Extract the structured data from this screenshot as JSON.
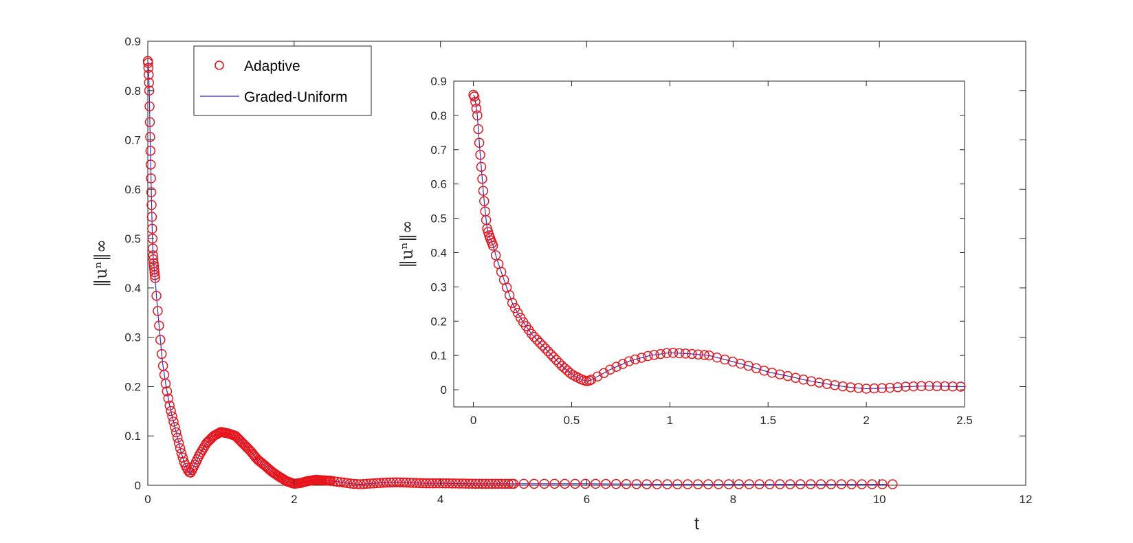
{
  "colors": {
    "adaptive_marker": "#e8141c",
    "graded_line": "#2b2bd6",
    "axes": "#262626"
  },
  "chart_data": [
    {
      "id": "main",
      "type": "scatter",
      "xlabel": "t",
      "ylabel": "‖uⁿ‖∞",
      "xlim": [
        0,
        12
      ],
      "ylim": [
        0,
        0.9
      ],
      "xticks": [
        0,
        2,
        4,
        6,
        8,
        10,
        12
      ],
      "yticks": [
        0,
        0.1,
        0.2,
        0.3,
        0.4,
        0.5,
        0.6,
        0.7,
        0.8,
        0.9
      ],
      "grid": false,
      "legend": {
        "position": "top-left",
        "entries": [
          {
            "label": "Adaptive",
            "style": "circle-marker"
          },
          {
            "label": "Graded-Uniform",
            "style": "line"
          }
        ]
      },
      "series": [
        {
          "name": "Adaptive",
          "kind": "markers",
          "description": "circle markers, dense at small t, sparser for t>5"
        },
        {
          "name": "Graded-Uniform",
          "kind": "line"
        }
      ],
      "curve": {
        "x": [
          0,
          0.005,
          0.01,
          0.02,
          0.03,
          0.04,
          0.05,
          0.06,
          0.07,
          0.08,
          0.1,
          0.12,
          0.15,
          0.2,
          0.25,
          0.3,
          0.35,
          0.4,
          0.45,
          0.5,
          0.55,
          0.58,
          0.62,
          0.7,
          0.8,
          0.9,
          1.0,
          1.1,
          1.2,
          1.3,
          1.4,
          1.5,
          1.6,
          1.7,
          1.8,
          1.9,
          2.0,
          2.1,
          2.2,
          2.3,
          2.4,
          2.5,
          2.6,
          2.7,
          2.8,
          2.9,
          3.0,
          3.2,
          3.4,
          3.6,
          3.8,
          4.0,
          4.5,
          5.0,
          6.0,
          7.0,
          8.0,
          9.0,
          10.0,
          10.1
        ],
        "y": [
          0.86,
          0.855,
          0.84,
          0.8,
          0.72,
          0.65,
          0.58,
          0.52,
          0.47,
          0.45,
          0.42,
          0.38,
          0.33,
          0.25,
          0.2,
          0.16,
          0.13,
          0.1,
          0.07,
          0.045,
          0.03,
          0.024,
          0.035,
          0.06,
          0.085,
          0.1,
          0.108,
          0.105,
          0.1,
          0.085,
          0.07,
          0.052,
          0.04,
          0.027,
          0.017,
          0.008,
          0.003,
          0.005,
          0.009,
          0.011,
          0.01,
          0.009,
          0.007,
          0.005,
          0.003,
          0.002,
          0.003,
          0.005,
          0.006,
          0.005,
          0.004,
          0.004,
          0.003,
          0.003,
          0.003,
          0.002,
          0.002,
          0.002,
          0.002,
          0.002
        ]
      },
      "marker_density": [
        {
          "from": 0,
          "to": 0.1,
          "step": 0.004
        },
        {
          "from": 0.1,
          "to": 2.5,
          "step": 0.018
        },
        {
          "from": 2.5,
          "to": 5,
          "step": 0.045
        },
        {
          "from": 5,
          "to": 10.2,
          "step": 0.14
        }
      ]
    },
    {
      "id": "inset",
      "type": "scatter",
      "xlabel": "",
      "ylabel": "‖uⁿ‖∞",
      "xlim": [
        -0.1,
        2.5
      ],
      "ylim": [
        -0.05,
        0.9
      ],
      "xticks": [
        0,
        0.5,
        1,
        1.5,
        2,
        2.5
      ],
      "yticks": [
        0,
        0.1,
        0.2,
        0.3,
        0.4,
        0.5,
        0.6,
        0.7,
        0.8,
        0.9
      ],
      "grid": false,
      "curve": {
        "x": [
          0,
          0.005,
          0.01,
          0.02,
          0.03,
          0.04,
          0.05,
          0.06,
          0.07,
          0.08,
          0.1,
          0.12,
          0.15,
          0.2,
          0.25,
          0.3,
          0.35,
          0.4,
          0.45,
          0.5,
          0.55,
          0.58,
          0.62,
          0.7,
          0.8,
          0.9,
          1.0,
          1.1,
          1.2,
          1.3,
          1.4,
          1.5,
          1.6,
          1.7,
          1.8,
          1.9,
          2.0,
          2.1,
          2.2,
          2.3,
          2.4,
          2.5
        ],
        "y": [
          0.86,
          0.855,
          0.84,
          0.8,
          0.72,
          0.65,
          0.58,
          0.52,
          0.47,
          0.45,
          0.42,
          0.38,
          0.33,
          0.25,
          0.2,
          0.16,
          0.13,
          0.1,
          0.07,
          0.045,
          0.03,
          0.024,
          0.035,
          0.06,
          0.085,
          0.1,
          0.108,
          0.105,
          0.1,
          0.085,
          0.07,
          0.052,
          0.04,
          0.027,
          0.017,
          0.008,
          0.003,
          0.005,
          0.009,
          0.011,
          0.01,
          0.009
        ]
      },
      "marker_density": [
        {
          "from": 0,
          "to": 0.1,
          "step": 0.005
        },
        {
          "from": 0.1,
          "to": 0.6,
          "step": 0.014
        },
        {
          "from": 0.6,
          "to": 1.2,
          "step": 0.032
        },
        {
          "from": 1.2,
          "to": 2.5,
          "step": 0.04
        }
      ]
    }
  ]
}
